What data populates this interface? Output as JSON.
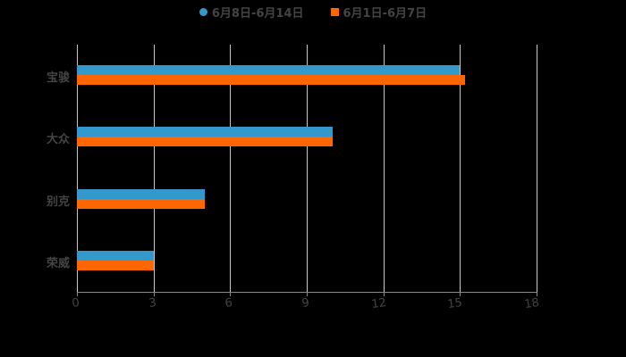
{
  "chart_data": {
    "type": "bar",
    "orientation": "horizontal",
    "title": "",
    "xlabel": "",
    "ylabel": "",
    "categories": [
      "宝骏",
      "大众",
      "别克",
      "荣威"
    ],
    "series": [
      {
        "name": "6月8日-6月14日",
        "color": "#3399cc",
        "values": [
          15,
          10,
          5,
          3
        ]
      },
      {
        "name": "6月1日-6月7日",
        "color": "#ff6600",
        "values": [
          15.2,
          10,
          5,
          3
        ]
      }
    ],
    "xlim": [
      0,
      18
    ],
    "xticks": [
      "0",
      "3",
      "6",
      "9",
      "12",
      "15",
      "18"
    ],
    "grid": true,
    "legend_position": "top"
  },
  "legend": {
    "series1": "6月8日-6月14日",
    "series2": "6月1日-6月7日"
  },
  "colors": {
    "series1": "#3399cc",
    "series2": "#ff6600",
    "background": "#000000",
    "grid": "#c8c8c8",
    "text": "#444444"
  }
}
